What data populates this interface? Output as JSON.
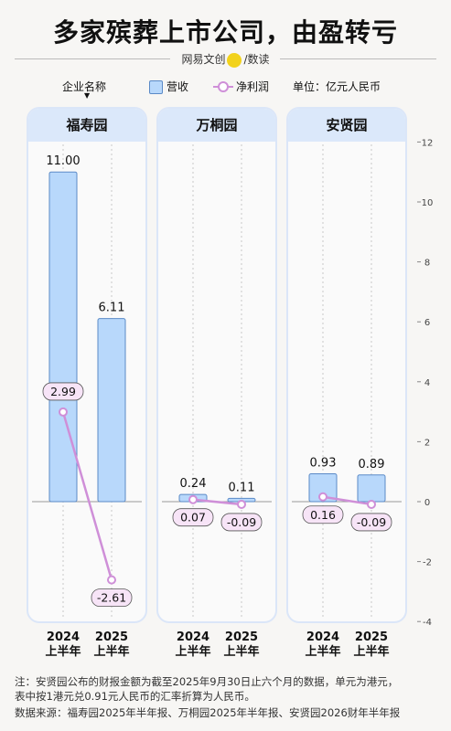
{
  "title": "多家殡葬上市公司，由盈转亏",
  "brand": {
    "left": "网易文创",
    "logo_text": "NetEase",
    "right": "数读"
  },
  "legend": {
    "company_label": "企业名称",
    "revenue_label": "营收",
    "profit_label": "净利润",
    "unit_label": "单位：亿元人民币"
  },
  "colors": {
    "bar_fill": "#b8d8fb",
    "bar_stroke": "#5b8ac7",
    "line": "#cf8fd8",
    "label_bg": "#f7e4f7",
    "panel_head": "#dbe8fa",
    "panel_border": "#dbe6f8",
    "brand_dot": "#f2d21b"
  },
  "chart_data": {
    "type": "bar",
    "categories": [
      "2024\n上半年",
      "2025\n上半年"
    ],
    "ylim": [
      -4,
      12
    ],
    "yticks": [
      -4,
      -2,
      0,
      2,
      4,
      6,
      8,
      10,
      12
    ],
    "grid": false,
    "legend_position": "top",
    "panels": [
      {
        "company": "福寿园",
        "revenue": [
          11.0,
          6.11
        ],
        "revenue_labels": [
          "11.00",
          "6.11"
        ],
        "profit": [
          2.99,
          -2.61
        ],
        "profit_labels": [
          "2.99",
          "-2.61"
        ]
      },
      {
        "company": "万桐园",
        "revenue": [
          0.24,
          0.11
        ],
        "revenue_labels": [
          "0.24",
          "0.11"
        ],
        "profit": [
          0.07,
          -0.09
        ],
        "profit_labels": [
          "0.07",
          "-0.09"
        ]
      },
      {
        "company": "安贤园",
        "revenue": [
          0.93,
          0.89
        ],
        "revenue_labels": [
          "0.93",
          "0.89"
        ],
        "profit": [
          0.16,
          -0.09
        ],
        "profit_labels": [
          "0.16",
          "-0.09"
        ]
      }
    ],
    "x_labels": [
      [
        "2024",
        "上半年"
      ],
      [
        "2025",
        "上半年"
      ]
    ]
  },
  "notes": [
    "注：安贤园公布的财报金额为截至2025年9月30日止六个月的数据，单元为港元，",
    "表中按1港元兑0.91元人民币的汇率折算为人民币。",
    "数据来源：福寿园2025年半年报、万桐园2025年半年报、安贤园2026财年半年报"
  ]
}
